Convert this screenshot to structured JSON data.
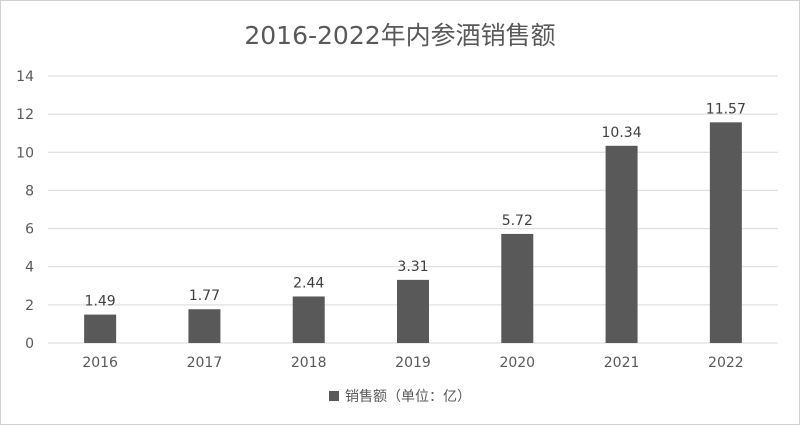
{
  "chart_data": {
    "type": "bar",
    "title": "2016-2022年内参酒销售额",
    "categories": [
      "2016",
      "2017",
      "2018",
      "2019",
      "2020",
      "2021",
      "2022"
    ],
    "series": [
      {
        "name": "销售额（单位：亿）",
        "values": [
          1.49,
          1.77,
          2.44,
          3.31,
          5.72,
          10.34,
          11.57
        ]
      }
    ],
    "data_labels": [
      "1.49",
      "1.77",
      "2.44",
      "3.31",
      "5.72",
      "10.34",
      "11.57"
    ],
    "y_ticks": [
      "0",
      "2",
      "4",
      "6",
      "8",
      "10",
      "12",
      "14"
    ],
    "ylim": [
      0,
      14
    ],
    "grid": true,
    "legend_position": "bottom",
    "bar_color": "#595959",
    "grid_color": "#d9d9d9"
  }
}
